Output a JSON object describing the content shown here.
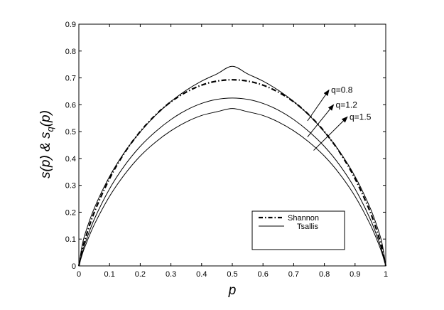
{
  "chart_data": {
    "type": "line",
    "title": "",
    "xlabel": "p",
    "ylabel": {
      "main": "s(p) & s",
      "sub": "q",
      "tail": "(p)"
    },
    "xlim": [
      0,
      1
    ],
    "ylim": [
      0,
      0.9
    ],
    "xticks": [
      0,
      0.1,
      0.2,
      0.3,
      0.4,
      0.5,
      0.6,
      0.7,
      0.8,
      0.9,
      1
    ],
    "xtick_labels": [
      "0",
      "0.1",
      "0.2",
      "0.3",
      "0.4",
      "0.5",
      "0.6",
      "0.7",
      "0.8",
      "0.9",
      "1"
    ],
    "yticks": [
      0,
      0.1,
      0.2,
      0.3,
      0.4,
      0.5,
      0.6,
      0.7,
      0.8,
      0.9
    ],
    "ytick_labels": [
      "0",
      "0.1",
      "0.2",
      "0.3",
      "0.4",
      "0.5",
      "0.6",
      "0.7",
      "0.8",
      "0.9"
    ],
    "grid": false,
    "legend": {
      "position": "lower-right",
      "entries": [
        {
          "label": "Shannon",
          "style": "dash-dot",
          "color": "#000000"
        },
        {
          "label": "Tsallis",
          "style": "solid",
          "color": "#000000"
        }
      ]
    },
    "x": [
      0,
      0.01,
      0.02,
      0.05,
      0.1,
      0.15,
      0.2,
      0.25,
      0.3,
      0.35,
      0.4,
      0.45,
      0.5,
      0.55,
      0.6,
      0.65,
      0.7,
      0.75,
      0.8,
      0.85,
      0.9,
      0.95,
      0.98,
      0.99,
      1
    ],
    "series": [
      {
        "style": "solid",
        "values": [
          0,
          0.072,
          0.118,
          0.214,
          0.333,
          0.425,
          0.499,
          0.561,
          0.612,
          0.654,
          0.688,
          0.715,
          0.743,
          0.715,
          0.688,
          0.654,
          0.612,
          0.561,
          0.499,
          0.425,
          0.333,
          0.214,
          0.118,
          0.072,
          0
        ]
      },
      {
        "name": "Shannon",
        "style": "dash-dot",
        "values": [
          0,
          0.056,
          0.098,
          0.199,
          0.325,
          0.423,
          0.5,
          0.562,
          0.611,
          0.647,
          0.673,
          0.688,
          0.693,
          0.688,
          0.673,
          0.647,
          0.611,
          0.562,
          0.5,
          0.423,
          0.325,
          0.199,
          0.098,
          0.056,
          0
        ]
      },
      {
        "style": "solid",
        "values": [
          0,
          0.046,
          0.083,
          0.173,
          0.287,
          0.375,
          0.445,
          0.5,
          0.545,
          0.58,
          0.605,
          0.62,
          0.625,
          0.62,
          0.605,
          0.58,
          0.545,
          0.5,
          0.445,
          0.375,
          0.287,
          0.173,
          0.083,
          0.046,
          0
        ]
      },
      {
        "style": "solid",
        "values": [
          0,
          0.039,
          0.072,
          0.153,
          0.259,
          0.342,
          0.409,
          0.461,
          0.503,
          0.536,
          0.56,
          0.574,
          0.586,
          0.574,
          0.56,
          0.536,
          0.503,
          0.461,
          0.409,
          0.342,
          0.259,
          0.153,
          0.072,
          0.039,
          0
        ]
      }
    ],
    "annotations": [
      {
        "text": "q=0.8",
        "tail": [
          0.745,
          0.54
        ],
        "head": [
          0.815,
          0.655
        ]
      },
      {
        "text": "q=1.2",
        "tail": [
          0.745,
          0.48
        ],
        "head": [
          0.83,
          0.6
        ]
      },
      {
        "text": "q=1.5",
        "tail": [
          0.765,
          0.43
        ],
        "head": [
          0.875,
          0.555
        ]
      }
    ]
  }
}
